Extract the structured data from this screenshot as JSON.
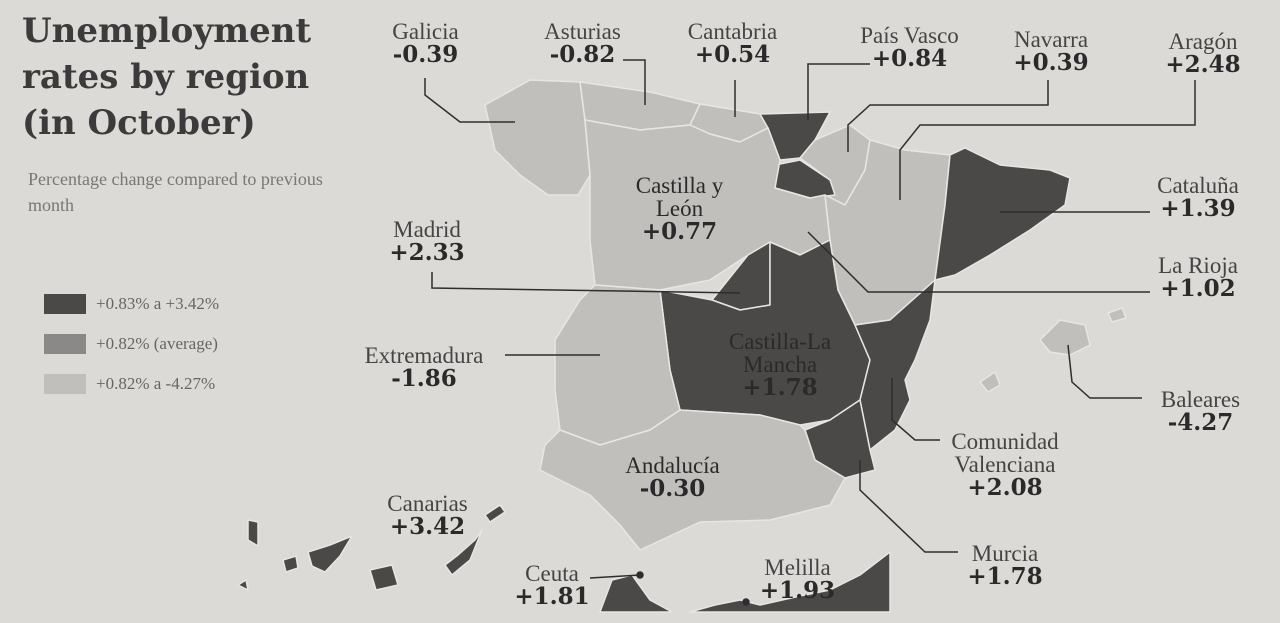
{
  "title": "Unemployment rates by region (in October)",
  "subtitle": "Percentage change compared to previous month",
  "legend": [
    {
      "label": "+0.83% a +3.42%",
      "color": "#4a4948"
    },
    {
      "label": "+0.82% (average)",
      "color": "#8a8987"
    },
    {
      "label": "+0.82% a -4.27%",
      "color": "#c1bfbc"
    }
  ],
  "regions": {
    "galicia": {
      "name": "Galicia",
      "value": "-0.39"
    },
    "asturias": {
      "name": "Asturias",
      "value": "-0.82"
    },
    "cantabria": {
      "name": "Cantabria",
      "value": "+0.54"
    },
    "pais_vasco": {
      "name": "País Vasco",
      "value": "+0.84"
    },
    "navarra": {
      "name": "Navarra",
      "value": "+0.39"
    },
    "aragon": {
      "name": "Aragón",
      "value": "+2.48"
    },
    "cataluna": {
      "name": "Cataluña",
      "value": "+1.39"
    },
    "la_rioja": {
      "name": "La Rioja",
      "value": "+1.02"
    },
    "castilla_leon": {
      "name": "Castilla y León",
      "value": "+0.77"
    },
    "madrid": {
      "name": "Madrid",
      "value": "+2.33"
    },
    "extremadura": {
      "name": "Extremadura",
      "value": "-1.86"
    },
    "castilla_la_mancha": {
      "name": "Castilla-La Mancha",
      "value": "+1.78"
    },
    "baleares": {
      "name": "Baleares",
      "value": "-4.27"
    },
    "comunidad_valenciana": {
      "name": "Comunidad Valenciana",
      "value": "+2.08"
    },
    "murcia": {
      "name": "Murcia",
      "value": "+1.78"
    },
    "andalucia": {
      "name": "Andalucía",
      "value": "-0.30"
    },
    "canarias": {
      "name": "Canarias",
      "value": "+3.42"
    },
    "ceuta": {
      "name": "Ceuta",
      "value": "+1.81"
    },
    "melilla": {
      "name": "Melilla",
      "value": "+1.93"
    }
  }
}
